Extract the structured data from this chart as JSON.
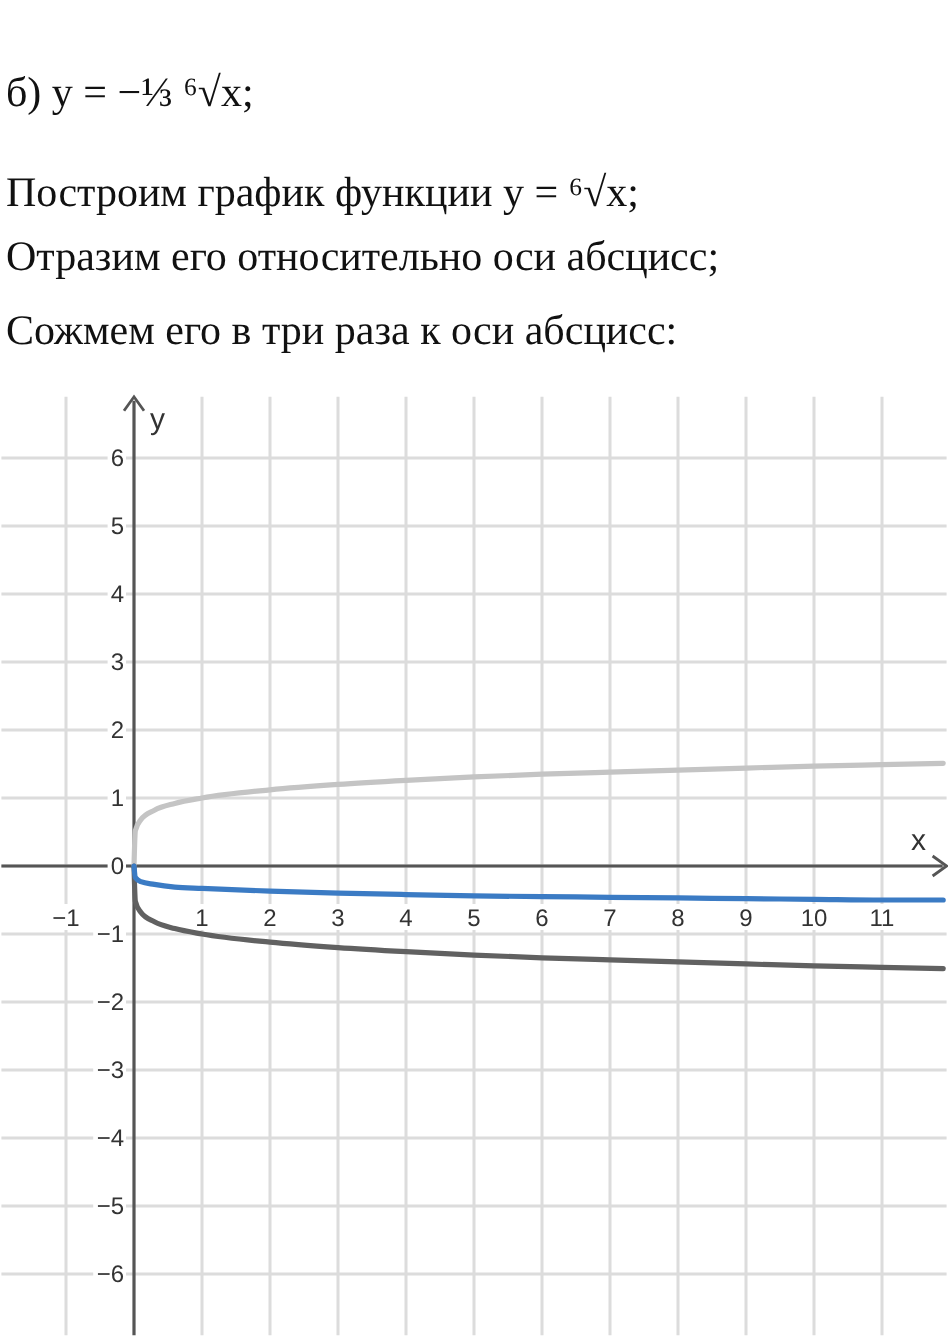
{
  "chart_data": {
    "type": "line",
    "title": "б) y = −⅓ ⁶√x;",
    "annotations": [
      "Построим график функции y = ⁶√x;",
      "Отразим его относительно оси абсцисс;",
      "Сожмем его в три раза к оси абсцисс:"
    ],
    "xlabel": "x",
    "ylabel": "y",
    "x": [
      0,
      0.02,
      0.1,
      0.3,
      0.6,
      1,
      2,
      3,
      4,
      5,
      6,
      7,
      8,
      9,
      10,
      11,
      11.9
    ],
    "series": [
      {
        "color": "#c4c4c4",
        "values": [
          0,
          0.52,
          0.68,
          0.82,
          0.92,
          1,
          1.12,
          1.2,
          1.26,
          1.31,
          1.35,
          1.38,
          1.41,
          1.44,
          1.47,
          1.49,
          1.51
        ]
      },
      {
        "color": "#616161",
        "values": [
          0,
          -0.52,
          -0.68,
          -0.82,
          -0.92,
          -1,
          -1.12,
          -1.2,
          -1.26,
          -1.31,
          -1.35,
          -1.38,
          -1.41,
          -1.44,
          -1.47,
          -1.49,
          -1.51
        ]
      },
      {
        "color": "#3b7bc4",
        "values": [
          0,
          -0.17,
          -0.23,
          -0.27,
          -0.31,
          -0.33,
          -0.37,
          -0.4,
          -0.42,
          -0.44,
          -0.45,
          -0.46,
          -0.47,
          -0.48,
          -0.49,
          -0.5,
          -0.5
        ]
      }
    ],
    "xlim": [
      -1.95,
      11.95
    ],
    "ylim": [
      -6.9,
      6.9
    ],
    "xticks": [
      {
        "value": -1,
        "label": "−1"
      },
      1,
      2,
      3,
      4,
      5,
      6,
      7,
      8,
      9,
      10,
      11
    ],
    "yticks": [
      {
        "value": -6,
        "label": "−6"
      },
      {
        "value": -5,
        "label": "−5"
      },
      {
        "value": -4,
        "label": "−4"
      },
      {
        "value": -3,
        "label": "−3"
      },
      {
        "value": -2,
        "label": "−2"
      },
      {
        "value": -1,
        "label": "−1"
      },
      0,
      1,
      2,
      3,
      4,
      5,
      6
    ],
    "grid": true
  }
}
